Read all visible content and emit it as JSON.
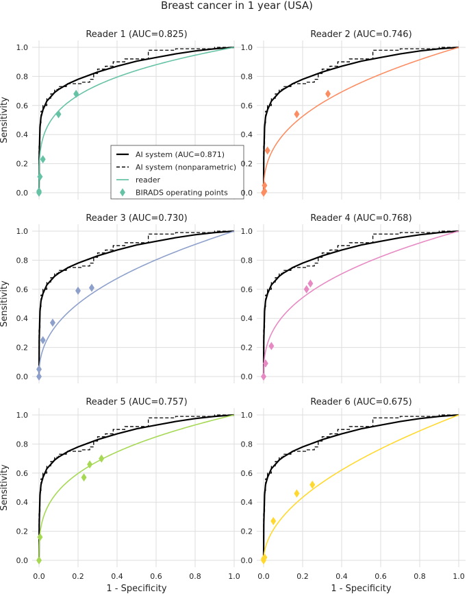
{
  "figure": {
    "title": "Breast cancer in 1 year (USA)",
    "xlabel": "1 - Specificity",
    "ylabel": "Sensitivity",
    "ticks": [
      "0.0",
      "0.2",
      "0.4",
      "0.6",
      "0.8",
      "1.0"
    ]
  },
  "legend": {
    "items": [
      {
        "label": "AI system (AUC=0.871)",
        "kind": "solid"
      },
      {
        "label": "AI system (nonparametric)",
        "kind": "dashed"
      },
      {
        "label": "reader",
        "kind": "reader"
      },
      {
        "label": "BIRADS operating points",
        "kind": "marker"
      }
    ],
    "location": "lower-right of Reader 1 panel"
  },
  "chart_data": {
    "type": "line",
    "grid": true,
    "xlim": [
      0,
      1
    ],
    "ylim": [
      0,
      1
    ],
    "ai_system": {
      "label": "AI system (AUC=0.871)",
      "color": "#000000",
      "curve": [
        [
          0,
          0
        ],
        [
          0.001,
          0.25
        ],
        [
          0.005,
          0.45
        ],
        [
          0.01,
          0.52
        ],
        [
          0.02,
          0.57
        ],
        [
          0.04,
          0.63
        ],
        [
          0.06,
          0.66
        ],
        [
          0.08,
          0.69
        ],
        [
          0.1,
          0.71
        ],
        [
          0.15,
          0.75
        ],
        [
          0.2,
          0.78
        ],
        [
          0.3,
          0.83
        ],
        [
          0.4,
          0.87
        ],
        [
          0.5,
          0.905
        ],
        [
          0.6,
          0.93
        ],
        [
          0.7,
          0.955
        ],
        [
          0.8,
          0.975
        ],
        [
          0.9,
          0.99
        ],
        [
          1,
          1
        ]
      ]
    },
    "ai_nonparametric": {
      "label": "AI system (nonparametric)",
      "color": "#000000",
      "steps": [
        [
          0,
          0
        ],
        [
          0,
          0.32
        ],
        [
          0.005,
          0.32
        ],
        [
          0.005,
          0.48
        ],
        [
          0.01,
          0.48
        ],
        [
          0.01,
          0.56
        ],
        [
          0.02,
          0.56
        ],
        [
          0.02,
          0.6
        ],
        [
          0.04,
          0.6
        ],
        [
          0.04,
          0.65
        ],
        [
          0.06,
          0.65
        ],
        [
          0.06,
          0.68
        ],
        [
          0.08,
          0.68
        ],
        [
          0.08,
          0.71
        ],
        [
          0.1,
          0.71
        ],
        [
          0.1,
          0.73
        ],
        [
          0.14,
          0.73
        ],
        [
          0.14,
          0.75
        ],
        [
          0.22,
          0.75
        ],
        [
          0.22,
          0.76
        ],
        [
          0.26,
          0.76
        ],
        [
          0.26,
          0.78
        ],
        [
          0.28,
          0.78
        ],
        [
          0.28,
          0.82
        ],
        [
          0.3,
          0.82
        ],
        [
          0.3,
          0.85
        ],
        [
          0.34,
          0.85
        ],
        [
          0.34,
          0.87
        ],
        [
          0.38,
          0.87
        ],
        [
          0.38,
          0.9
        ],
        [
          0.44,
          0.9
        ],
        [
          0.44,
          0.92
        ],
        [
          0.56,
          0.92
        ],
        [
          0.56,
          0.98
        ],
        [
          0.7,
          0.98
        ],
        [
          0.7,
          0.99
        ],
        [
          0.9,
          0.99
        ],
        [
          0.9,
          1
        ],
        [
          1,
          1
        ]
      ]
    },
    "panels": [
      {
        "title": "Reader 1 (AUC=0.825)",
        "color": "#66c2a5",
        "b": 0.25,
        "points": [
          [
            0,
            0
          ],
          [
            0,
            0.01
          ],
          [
            0.005,
            0.11
          ],
          [
            0.02,
            0.23
          ],
          [
            0.1,
            0.54
          ],
          [
            0.19,
            0.68
          ]
        ]
      },
      {
        "title": "Reader 2 (AUC=0.746)",
        "color": "#fc8d62",
        "b": 0.4,
        "points": [
          [
            0,
            0
          ],
          [
            0.005,
            0.01
          ],
          [
            0.005,
            0.05
          ],
          [
            0.02,
            0.29
          ],
          [
            0.17,
            0.54
          ],
          [
            0.33,
            0.68
          ]
        ]
      },
      {
        "title": "Reader 3 (AUC=0.730)",
        "color": "#8da0cb",
        "b": 0.43,
        "points": [
          [
            0,
            0
          ],
          [
            0,
            0.05
          ],
          [
            0.02,
            0.25
          ],
          [
            0.07,
            0.37
          ],
          [
            0.2,
            0.59
          ],
          [
            0.27,
            0.61
          ]
        ]
      },
      {
        "title": "Reader 4 (AUC=0.768)",
        "color": "#e78ac3",
        "b": 0.38,
        "points": [
          [
            0,
            0
          ],
          [
            0.01,
            0.09
          ],
          [
            0.04,
            0.21
          ],
          [
            0.22,
            0.6
          ],
          [
            0.24,
            0.64
          ]
        ]
      },
      {
        "title": "Reader 5 (AUC=0.757)",
        "color": "#a6d854",
        "b": 0.32,
        "points": [
          [
            0,
            0
          ],
          [
            0.005,
            0.16
          ],
          [
            0.23,
            0.57
          ],
          [
            0.26,
            0.66
          ],
          [
            0.32,
            0.7
          ]
        ]
      },
      {
        "title": "Reader 6 (AUC=0.675)",
        "color": "#ffd92f",
        "b": 0.52,
        "points": [
          [
            0,
            0
          ],
          [
            0,
            0.01
          ],
          [
            0.005,
            0.02
          ],
          [
            0.05,
            0.27
          ],
          [
            0.17,
            0.46
          ],
          [
            0.25,
            0.52
          ]
        ]
      }
    ]
  }
}
